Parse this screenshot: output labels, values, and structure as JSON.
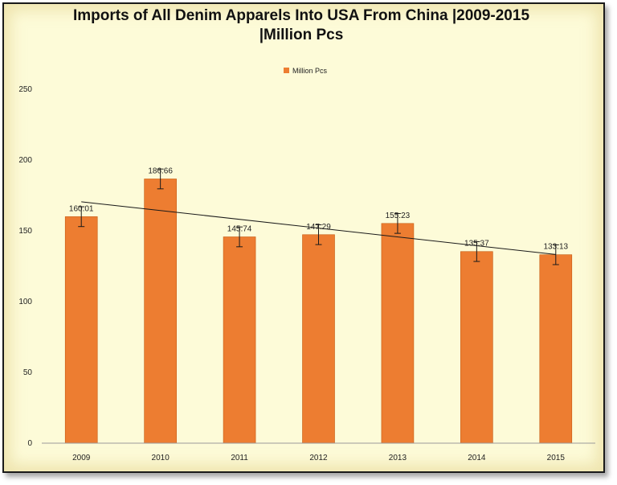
{
  "chart_data": {
    "type": "bar",
    "title_line1": "Imports of All Denim Apparels Into USA From China |2009-2015",
    "title_line2": "|Million Pcs",
    "categories": [
      "2009",
      "2010",
      "2011",
      "2012",
      "2013",
      "2014",
      "2015"
    ],
    "series": [
      {
        "name": "Million Pcs",
        "values": [
          160.01,
          186.66,
          145.74,
          147.29,
          155.23,
          135.37,
          133.13
        ],
        "data_labels": [
          "160.01",
          "186.66",
          "145.74",
          "147.29",
          "155.23",
          "135.37",
          "133.13"
        ],
        "error_bar": 7,
        "trendline": "linear"
      }
    ],
    "yticks": [
      "0",
      "50",
      "100",
      "150",
      "200",
      "250"
    ],
    "ylim": [
      0,
      250
    ],
    "grid": false,
    "legend_position": "top",
    "colors": {
      "bar": "#ed7d31",
      "bar_edge": "#c55a11",
      "trendline": "#1a1a1a",
      "background": "#fdfbd8"
    }
  }
}
